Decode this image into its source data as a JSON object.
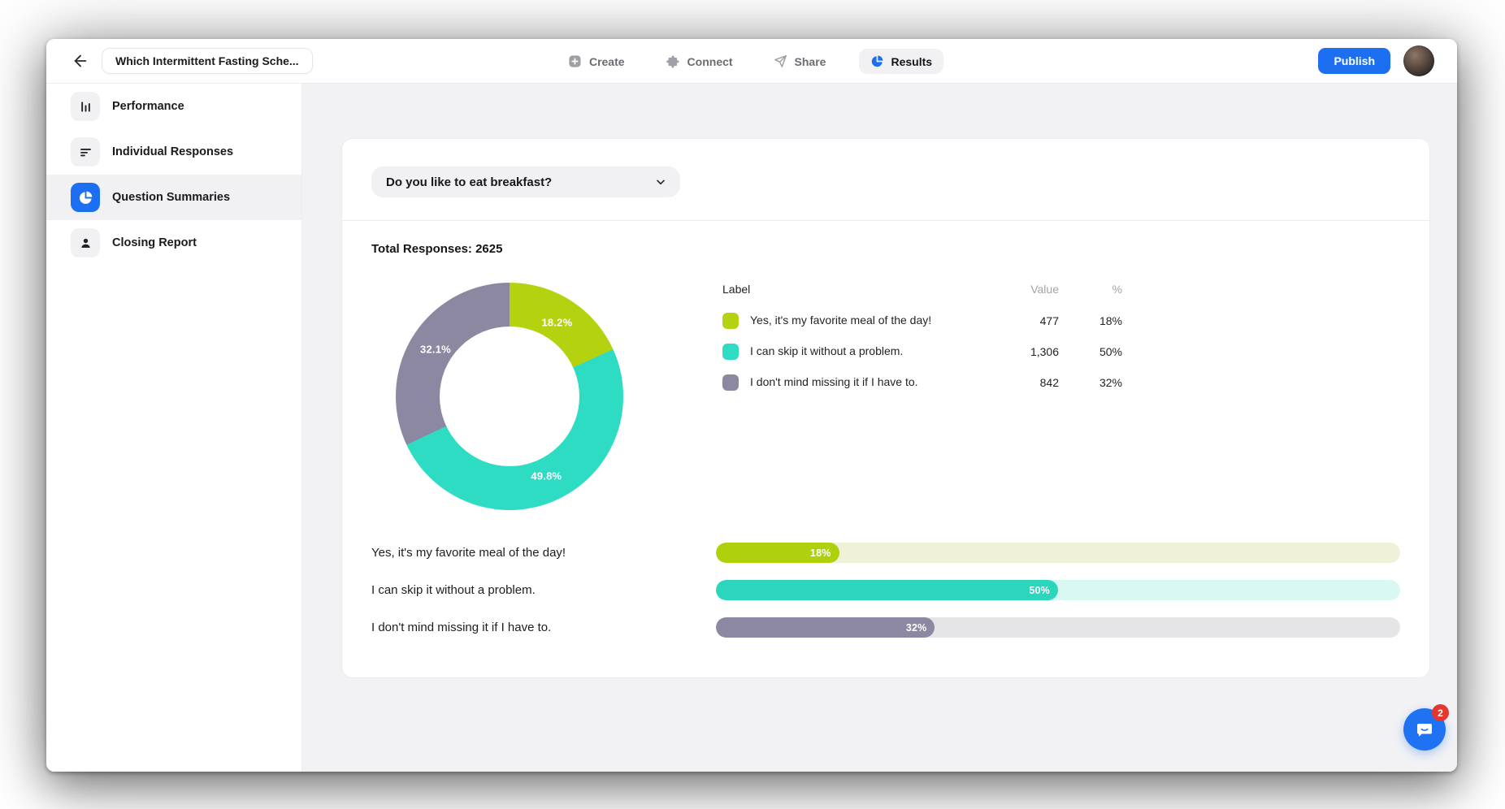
{
  "header": {
    "title": "Which Intermittent Fasting Sche...",
    "nav": [
      {
        "label": "Create",
        "icon": "plus-square-icon",
        "active": false
      },
      {
        "label": "Connect",
        "icon": "puzzle-icon",
        "active": false
      },
      {
        "label": "Share",
        "icon": "paper-plane-icon",
        "active": false
      },
      {
        "label": "Results",
        "icon": "pie-chart-icon",
        "active": true
      }
    ],
    "publish_label": "Publish",
    "accent_color": "#1d6ff2"
  },
  "sidebar": {
    "items": [
      {
        "label": "Performance",
        "icon": "bar-chart-icon",
        "active": false
      },
      {
        "label": "Individual Responses",
        "icon": "list-lines-icon",
        "active": false
      },
      {
        "label": "Question Summaries",
        "icon": "pie-chart-icon",
        "active": true
      },
      {
        "label": "Closing Report",
        "icon": "person-icon",
        "active": false
      }
    ]
  },
  "panel": {
    "question_dropdown_value": "Do you like to eat breakfast?",
    "total_responses": "Total Responses: 2625"
  },
  "legend": {
    "headers": {
      "label": "Label",
      "value": "Value",
      "pct": "%"
    },
    "rows": [
      {
        "label": "Yes, it's my favorite meal of the day!",
        "value": "477",
        "pct": "18%"
      },
      {
        "label": "I can skip it without a problem.",
        "value": "1,306",
        "pct": "50%"
      },
      {
        "label": "I don't mind missing it if I have to.",
        "value": "842",
        "pct": "32%"
      }
    ]
  },
  "chart_data": [
    {
      "type": "pie",
      "subtype": "donut",
      "title": "Do you like to eat breakfast?",
      "total_responses": 2625,
      "categories": [
        "Yes, it's my favorite meal of the day!",
        "I can skip it without a problem.",
        "I don't mind missing it if I have to."
      ],
      "values": [
        477,
        1306,
        842
      ],
      "percents": [
        18.2,
        49.8,
        32.1
      ],
      "slice_labels": [
        "18.2%",
        "49.8%",
        "32.1%"
      ],
      "colors": [
        "#b5d211",
        "#2edcc3",
        "#8d88a2"
      ],
      "start_angle_deg": 0,
      "direction": "clockwise",
      "legend_position": "right"
    },
    {
      "type": "bar",
      "orientation": "horizontal",
      "categories": [
        "Yes, it's my favorite meal of the day!",
        "I can skip it without a problem.",
        "I don't mind missing it if I have to."
      ],
      "values": [
        18,
        50,
        32
      ],
      "value_labels": [
        "18%",
        "50%",
        "32%"
      ],
      "colors": [
        "#aed00d",
        "#2bd6bd",
        "#8d88a2"
      ],
      "track_colors": [
        "#eff2d8",
        "#daf8f2",
        "#e5e5e7"
      ],
      "xlim": [
        0,
        100
      ]
    }
  ],
  "chat": {
    "badge_count": "2"
  }
}
